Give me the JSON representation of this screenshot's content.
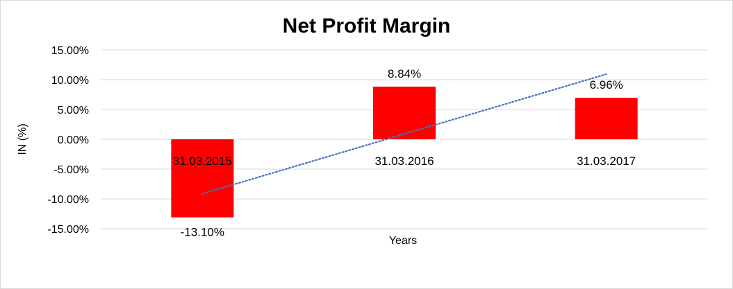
{
  "chart_data": {
    "type": "bar",
    "title": "Net Profit Margin",
    "xlabel": "Years",
    "ylabel": "IN (%)",
    "categories": [
      "31.03.2015",
      "31.03.2016",
      "31.03.2017"
    ],
    "values": [
      -13.1,
      8.84,
      6.96
    ],
    "data_labels": [
      "-13.10%",
      "8.84%",
      "6.96%"
    ],
    "ylim": [
      -15,
      15
    ],
    "yticks": [
      15,
      10,
      5,
      0,
      -5,
      -10,
      -15
    ],
    "ytick_labels": [
      "15.00%",
      "10.00%",
      "5.00%",
      "0.00%",
      "-5.00%",
      "-10.00%",
      "-15.00%"
    ],
    "grid": true,
    "legend": "none",
    "trendline": {
      "type": "linear",
      "style": "dotted"
    },
    "colors": {
      "bar": "#ff0000",
      "trendline": "#4472c4",
      "grid": "#d9d9d9"
    }
  }
}
